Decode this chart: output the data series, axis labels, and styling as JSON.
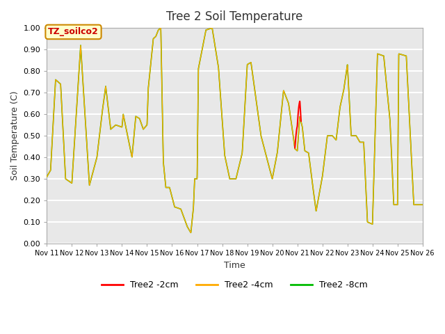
{
  "title": "Tree 2 Soil Temperature",
  "xlabel": "Time",
  "ylabel": "Soil Temperature (C)",
  "ylim": [
    0.0,
    1.0
  ],
  "bg_color": "#e8e8e8",
  "grid_color": "#ffffff",
  "annotation_text": "TZ_soilco2",
  "annotation_bg": "#ffffcc",
  "annotation_border": "#cc8800",
  "line_2cm_color": "#ff0000",
  "line_4cm_color": "#ffaa00",
  "line_8cm_color": "#00bb00",
  "legend_labels": [
    "Tree2 -2cm",
    "Tree2 -4cm",
    "Tree2 -8cm"
  ],
  "x_nodes": [
    11.0,
    11.15,
    11.35,
    11.55,
    11.75,
    12.0,
    12.35,
    12.7,
    13.0,
    13.2,
    13.35,
    13.55,
    13.75,
    14.0,
    14.05,
    14.4,
    14.55,
    14.7,
    14.85,
    15.0,
    15.05,
    15.25,
    15.35,
    15.45,
    15.55,
    15.65,
    15.75,
    15.9,
    16.1,
    16.35,
    16.6,
    16.75,
    16.85,
    16.9,
    17.0,
    17.05,
    17.35,
    17.6,
    17.85,
    18.1,
    18.3,
    18.55,
    18.8,
    19.0,
    19.15,
    19.35,
    19.55,
    19.75,
    20.0,
    20.2,
    20.45,
    20.65,
    20.8,
    20.9,
    21.0,
    21.1,
    21.2,
    21.3,
    21.45,
    21.6,
    21.75,
    22.0,
    22.2,
    22.4,
    22.55,
    22.7,
    22.85,
    23.0,
    23.15,
    23.35,
    23.5,
    23.65,
    23.8,
    24.0,
    24.2,
    24.45,
    24.7,
    24.85,
    25.0,
    25.05,
    25.35,
    25.65,
    25.85,
    26.0
  ],
  "y_nodes": [
    0.31,
    0.34,
    0.76,
    0.74,
    0.3,
    0.28,
    0.92,
    0.27,
    0.4,
    0.6,
    0.73,
    0.53,
    0.55,
    0.54,
    0.6,
    0.4,
    0.59,
    0.58,
    0.53,
    0.55,
    0.72,
    0.95,
    0.96,
    0.99,
    1.0,
    0.38,
    0.26,
    0.26,
    0.17,
    0.16,
    0.08,
    0.05,
    0.16,
    0.3,
    0.3,
    0.81,
    0.99,
    1.0,
    0.82,
    0.41,
    0.3,
    0.3,
    0.42,
    0.83,
    0.84,
    0.67,
    0.5,
    0.41,
    0.3,
    0.42,
    0.71,
    0.65,
    0.53,
    0.44,
    0.43,
    0.59,
    0.54,
    0.43,
    0.42,
    0.28,
    0.15,
    0.31,
    0.5,
    0.5,
    0.48,
    0.63,
    0.71,
    0.83,
    0.5,
    0.5,
    0.47,
    0.47,
    0.1,
    0.09,
    0.88,
    0.87,
    0.57,
    0.18,
    0.18,
    0.88,
    0.87,
    0.18,
    0.18,
    0.18
  ]
}
